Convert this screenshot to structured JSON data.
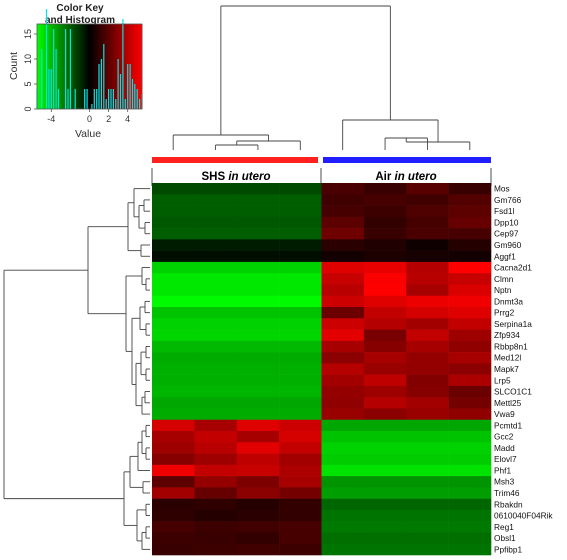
{
  "chart_data": {
    "type": "heatmap",
    "color_key": {
      "title_line1": "Color Key",
      "title_line2": "and Histogram",
      "xlabel": "Value",
      "ylabel": "Count",
      "x_ticks": [
        "-4",
        "0",
        "2",
        "4"
      ],
      "y_ticks": [
        "0",
        "5",
        "10",
        "15"
      ],
      "palette": [
        "#00ff00",
        "#000000",
        "#ff0000"
      ],
      "histogram_color": "#00e5e5"
    },
    "groups": [
      {
        "name": "SHS",
        "suffix": "in utero",
        "color": "#ff2020"
      },
      {
        "name": "Air",
        "suffix": "in utero",
        "color": "#1f1fff"
      }
    ],
    "genes": [
      "Mos",
      "Gm766",
      "Fsd1l",
      "Dpp10",
      "Cep97",
      "Gm960",
      "Aggf1",
      "Cacna2d1",
      "Clmn",
      "Nptn",
      "Dnmt3a",
      "Prrg2",
      "Serpina1a",
      "Zfp934",
      "Rbbp8n1",
      "Med12l",
      "Mapk7",
      "Lrp5",
      "SLCO1C1",
      "Mettl25",
      "Vwa9",
      "Pcmtd1",
      "Gcc2",
      "Madd",
      "Elovl7",
      "Phf1",
      "Msh3",
      "Trim46",
      "Rbakdn",
      "0610040F04Rik",
      "Reg1",
      "Obsl1",
      "Ppfibp1"
    ],
    "values": [
      [
        -1.6,
        -1.6,
        -1.6,
        -1.6,
        1.6,
        1.2,
        1.9,
        1.2
      ],
      [
        -2.0,
        -2.0,
        -2.0,
        -2.0,
        1.4,
        1.5,
        1.4,
        1.8
      ],
      [
        -2.0,
        -2.0,
        -2.0,
        -2.0,
        1.5,
        1.3,
        1.7,
        2.0
      ],
      [
        -1.9,
        -1.9,
        -1.9,
        -1.9,
        2.0,
        1.1,
        1.5,
        2.2
      ],
      [
        -2.0,
        -2.0,
        -2.0,
        -2.0,
        2.4,
        1.2,
        1.6,
        1.5
      ],
      [
        -0.6,
        -0.6,
        -0.6,
        -0.6,
        0.9,
        0.7,
        0.3,
        0.8
      ],
      [
        -0.3,
        -0.3,
        -0.3,
        -0.3,
        0.4,
        0.6,
        0.5,
        0.4
      ],
      [
        -4.5,
        -4.5,
        -4.5,
        -4.5,
        4.8,
        5.0,
        3.9,
        5.6
      ],
      [
        -5.0,
        -5.0,
        -5.0,
        -5.0,
        4.3,
        5.4,
        4.0,
        4.3
      ],
      [
        -5.0,
        -5.0,
        -5.0,
        -5.0,
        4.0,
        5.6,
        3.6,
        4.7
      ],
      [
        -5.4,
        -5.4,
        -5.4,
        -5.4,
        4.4,
        4.8,
        5.1,
        5.2
      ],
      [
        -4.2,
        -4.2,
        -4.2,
        -4.2,
        2.3,
        4.2,
        4.6,
        4.8
      ],
      [
        -4.5,
        -4.5,
        -4.5,
        -4.5,
        4.4,
        3.9,
        3.5,
        4.2
      ],
      [
        -4.6,
        -4.6,
        -4.6,
        -4.6,
        4.9,
        2.6,
        4.2,
        3.4
      ],
      [
        -4.0,
        -4.0,
        -4.0,
        -4.0,
        3.6,
        2.9,
        3.6,
        3.1
      ],
      [
        -3.7,
        -3.7,
        -3.7,
        -3.7,
        3.0,
        3.6,
        3.2,
        3.6
      ],
      [
        -3.8,
        -3.8,
        -3.8,
        -3.8,
        3.9,
        3.3,
        3.2,
        3.0
      ],
      [
        -3.8,
        -3.8,
        -3.8,
        -3.8,
        3.5,
        4.1,
        2.8,
        3.7
      ],
      [
        -3.9,
        -3.9,
        -3.9,
        -3.9,
        3.2,
        3.4,
        2.9,
        2.3
      ],
      [
        -3.6,
        -3.6,
        -3.6,
        -3.6,
        3.1,
        3.9,
        3.5,
        2.5
      ],
      [
        -3.7,
        -3.7,
        -3.7,
        -3.7,
        3.3,
        3.0,
        3.3,
        3.1
      ],
      [
        4.6,
        3.6,
        4.8,
        4.4,
        -3.6,
        -3.6,
        -3.6,
        -3.6
      ],
      [
        3.6,
        4.2,
        3.6,
        4.6,
        -4.2,
        -4.2,
        -4.2,
        -4.2
      ],
      [
        3.4,
        4.0,
        4.9,
        4.2,
        -4.5,
        -4.5,
        -4.5,
        -4.5
      ],
      [
        2.9,
        3.4,
        4.1,
        3.5,
        -4.4,
        -4.4,
        -4.4,
        -4.4
      ],
      [
        5.2,
        4.2,
        4.3,
        3.7,
        -4.9,
        -4.9,
        -4.9,
        -4.9
      ],
      [
        2.0,
        3.2,
        2.7,
        3.6,
        -3.2,
        -3.2,
        -3.2,
        -3.2
      ],
      [
        3.5,
        2.2,
        3.0,
        2.5,
        -3.4,
        -3.4,
        -3.4,
        -3.4
      ],
      [
        0.9,
        1.0,
        0.8,
        1.1,
        -2.2,
        -2.2,
        -2.2,
        -2.2
      ],
      [
        1.0,
        0.8,
        0.9,
        1.1,
        -2.5,
        -2.5,
        -2.5,
        -2.5
      ],
      [
        1.5,
        1.3,
        1.4,
        1.5,
        -2.6,
        -2.6,
        -2.6,
        -2.6
      ],
      [
        1.3,
        1.2,
        1.1,
        1.5,
        -2.4,
        -2.4,
        -2.4,
        -2.4
      ],
      [
        1.2,
        1.3,
        1.4,
        1.3,
        -2.5,
        -2.5,
        -2.5,
        -2.5
      ]
    ],
    "value_range": [
      -5.5,
      5.5
    ]
  }
}
